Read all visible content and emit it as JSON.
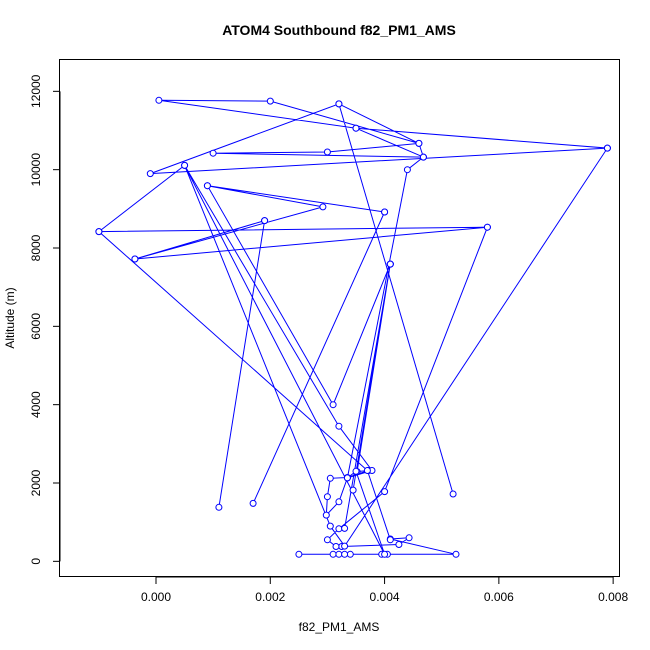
{
  "chart_data": {
    "type": "line",
    "title": "ATOM4 Southbound f82_PM1_AMS",
    "xlabel": "f82_PM1_AMS",
    "ylabel": "Altitude (m)",
    "xlim": [
      -0.00168,
      0.00812
    ],
    "ylim": [
      -400,
      12800
    ],
    "x_ticks": [
      0,
      0.002,
      0.004,
      0.006,
      0.008
    ],
    "x_tick_labels": [
      "0.000",
      "0.002",
      "0.004",
      "0.006",
      "0.008"
    ],
    "y_ticks": [
      0,
      2000,
      4000,
      6000,
      8000,
      10000,
      12000
    ],
    "y_tick_labels": [
      "0",
      "2000",
      "4000",
      "6000",
      "8000",
      "10000",
      "12000"
    ],
    "grid": false,
    "legend": "none",
    "marker": "open-circle",
    "color": "#0000ff",
    "series": [
      {
        "points": [
          [
            0.0025,
            180
          ],
          [
            0.0031,
            180
          ],
          [
            0.0032,
            180
          ],
          [
            0.0034,
            180
          ],
          [
            0.0033,
            180
          ],
          [
            0.00395,
            180
          ],
          [
            0.00405,
            180
          ],
          [
            0.00525,
            180
          ],
          [
            0.0041,
            570
          ],
          [
            0.00443,
            600
          ],
          [
            0.00425,
            430
          ],
          [
            0.00325,
            380
          ],
          [
            0.00315,
            380
          ],
          [
            0.003,
            550
          ],
          [
            0.0032,
            830
          ],
          [
            0.004,
            1780
          ],
          [
            0.0058,
            8530
          ],
          [
            -0.001,
            8420
          ],
          [
            0.0058,
            8530
          ],
          [
            -0.00037,
            7720
          ],
          [
            0.0019,
            8700
          ],
          [
            0.0011,
            1380
          ],
          [
            0.0019,
            8700
          ],
          [
            -0.00037,
            7720
          ],
          [
            0.00292,
            9050
          ],
          [
            0.0009,
            9590
          ],
          [
            0.004,
            8920
          ],
          [
            0.0017,
            1480
          ],
          [
            0.004,
            8920
          ],
          [
            0.0009,
            9590
          ],
          [
            0.0031,
            4000
          ],
          [
            0.0041,
            7590
          ],
          [
            0.00345,
            1820
          ],
          [
            0.0041,
            7590
          ],
          [
            0.0033,
            840
          ],
          [
            0.0041,
            7590
          ],
          [
            0.00352,
            2290
          ],
          [
            0.00372,
            2320
          ],
          [
            0.00335,
            2140
          ],
          [
            0.00305,
            2120
          ],
          [
            0.003,
            1650
          ],
          [
            0.00298,
            1180
          ],
          [
            0.0032,
            1520
          ],
          [
            0.00335,
            2130
          ],
          [
            0.0044,
            10000
          ],
          [
            0.00468,
            10320
          ],
          [
            0.0046,
            10670
          ],
          [
            0.003,
            10450
          ],
          [
            0.001,
            10420
          ],
          [
            0.00468,
            10320
          ],
          [
            0.0035,
            11060
          ],
          [
            5e-05,
            11770
          ],
          [
            0.002,
            11750
          ],
          [
            0.0046,
            10670
          ],
          [
            0.0032,
            11680
          ],
          [
            0.0052,
            1720
          ],
          [
            0.0032,
            11680
          ],
          [
            -0.0001,
            9900
          ],
          [
            0.0079,
            10550
          ],
          [
            0.0035,
            11060
          ],
          [
            0.0079,
            10550
          ],
          [
            0.0033,
            390
          ],
          [
            0.00305,
            900
          ],
          [
            0.0005,
            10110
          ],
          [
            0.0032,
            3450
          ],
          [
            0.00378,
            2320
          ],
          [
            0.00335,
            2130
          ],
          [
            0.0035,
            2300
          ],
          [
            0.004,
            180
          ],
          [
            0.0005,
            10110
          ],
          [
            -0.001,
            8420
          ],
          [
            0.0037,
            2320
          ],
          [
            0.0041,
            550
          ]
        ]
      }
    ]
  }
}
